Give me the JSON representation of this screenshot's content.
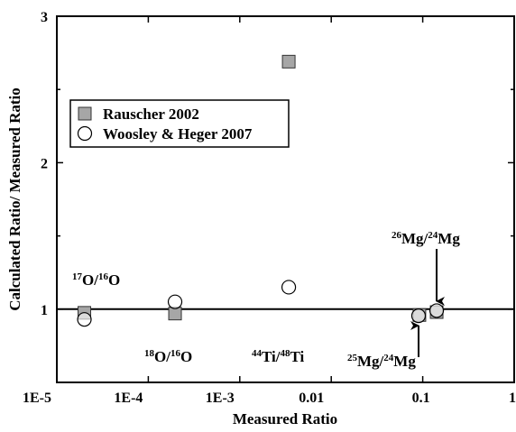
{
  "chart_data": {
    "type": "scatter",
    "xlabel": "Measured Ratio",
    "ylabel": "Calculated Ratio/ Measured Ratio",
    "xscale": "log",
    "xlim": [
      1e-05,
      1
    ],
    "xticks": [
      {
        "value": 1e-05,
        "label": "1E-5"
      },
      {
        "value": 0.0001,
        "label": "1E-4"
      },
      {
        "value": 0.001,
        "label": "1E-3"
      },
      0.01,
      0.1,
      1
    ],
    "ylim": [
      0.5,
      3
    ],
    "yticks": [
      1,
      2,
      3
    ],
    "yticks_minor": [
      0.5,
      1.5,
      2.5
    ],
    "reference_line": 1,
    "legend": "upper left",
    "series": [
      {
        "name": "Rauscher 2002",
        "marker": "square",
        "color": "#a6a6a6",
        "x": [
          2e-05,
          0.000196,
          0.00343,
          0.092,
          0.142
        ],
        "values": [
          0.975,
          0.97,
          2.69,
          0.96,
          0.98
        ]
      },
      {
        "name": "Woosley & Heger 2007",
        "marker": "circle",
        "color": "#ffffff",
        "x": [
          2e-05,
          0.000196,
          0.00343,
          0.09,
          0.142
        ],
        "values": [
          0.93,
          1.05,
          1.15,
          0.955,
          0.99
        ]
      }
    ],
    "annotations": [
      [
        {
          "sup": "17"
        },
        {
          "text": "O/"
        },
        {
          "sup": "16"
        },
        {
          "text": "O"
        }
      ],
      [
        {
          "sup": "18"
        },
        {
          "text": "O/"
        },
        {
          "sup": "16"
        },
        {
          "text": "O"
        }
      ],
      [
        {
          "sup": "44"
        },
        {
          "text": "Ti/"
        },
        {
          "sup": "48"
        },
        {
          "text": "Ti"
        }
      ],
      [
        {
          "sup": "25"
        },
        {
          "text": "Mg/"
        },
        {
          "sup": "24"
        },
        {
          "text": "Mg"
        }
      ],
      [
        {
          "sup": "26"
        },
        {
          "text": "Mg/"
        },
        {
          "sup": "24"
        },
        {
          "text": "Mg"
        }
      ]
    ]
  }
}
